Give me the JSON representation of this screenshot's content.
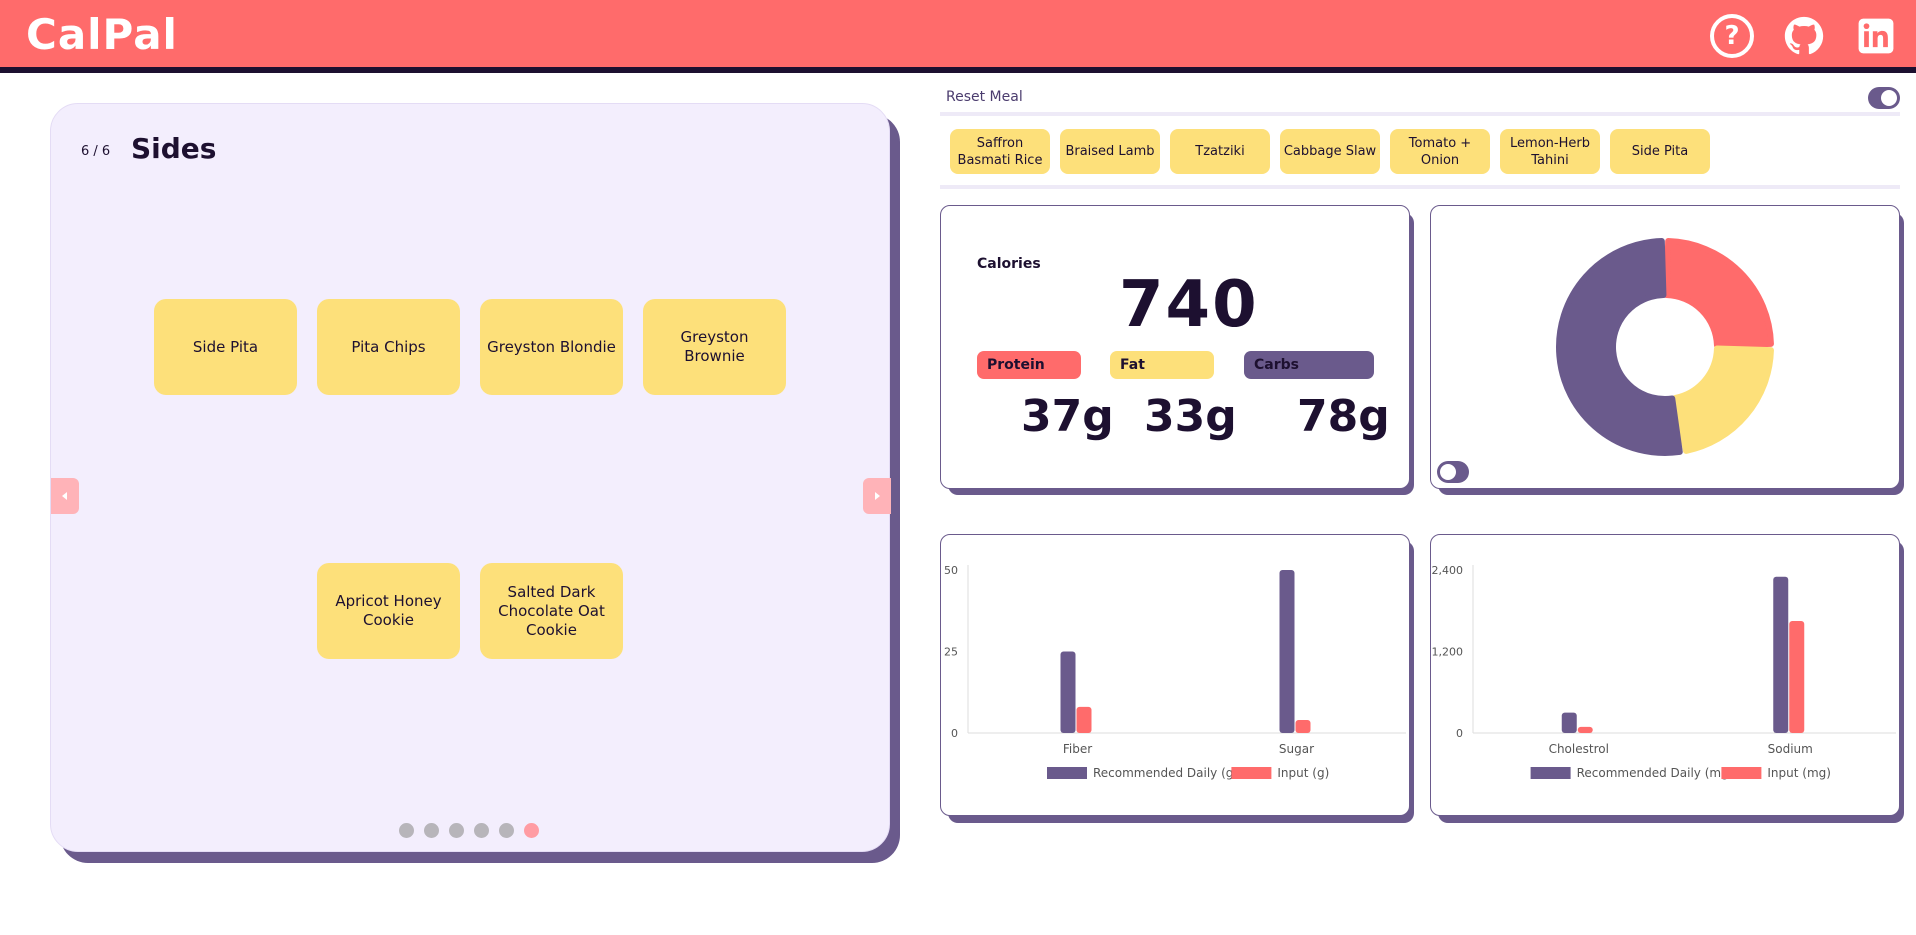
{
  "header": {
    "logo": "CalPal",
    "help_glyph": "?"
  },
  "carousel": {
    "step": "6 / 6",
    "title": "Sides",
    "items": [
      "Side Pita",
      "Pita Chips",
      "Greyston Blondie",
      "Greyston Brownie",
      "Apricot Honey Cookie",
      "Salted Dark Chocolate Oat Cookie"
    ],
    "dots_total": 6,
    "dots_active": 6
  },
  "meal": {
    "reset_label": "Reset Meal",
    "chips": [
      "Saffron Basmati Rice",
      "Braised Lamb",
      "Tzatziki",
      "Cabbage Slaw",
      "Tomato + Onion",
      "Lemon-Herb Tahini",
      "Side Pita"
    ]
  },
  "summary": {
    "calories_label": "Calories",
    "calories_value": "740",
    "macros": [
      {
        "label": "Protein",
        "value": "37g",
        "color": "#ff6b6b"
      },
      {
        "label": "Fat",
        "value": "33g",
        "color": "#fde07a"
      },
      {
        "label": "Carbs",
        "value": "78g",
        "color": "#6a5a8c"
      }
    ]
  },
  "colors": {
    "accent": "#ff6b6b",
    "yellow": "#fde07a",
    "purple": "#6a5a8c",
    "dark": "#1d1030"
  },
  "chart_data": [
    {
      "type": "pie",
      "categories": [
        "Protein",
        "Fat",
        "Carbs"
      ],
      "values": [
        37,
        33,
        78
      ]
    },
    {
      "type": "bar",
      "categories": [
        "Fiber",
        "Sugar"
      ],
      "series": [
        {
          "name": "Recommended Daily (g)",
          "values": [
            25,
            50
          ]
        },
        {
          "name": "Input (g)",
          "values": [
            8,
            4
          ]
        }
      ],
      "ylim": [
        0,
        50
      ],
      "yticks": [
        "0",
        "25",
        "50"
      ],
      "legend": "bottom"
    },
    {
      "type": "bar",
      "categories": [
        "Cholestrol",
        "Sodium"
      ],
      "series": [
        {
          "name": "Recommended Daily (mg)",
          "values": [
            300,
            2300
          ]
        },
        {
          "name": "Input (mg)",
          "values": [
            90,
            1650
          ]
        }
      ],
      "ylim": [
        0,
        2400
      ],
      "yticks": [
        "0",
        "1,200",
        "2,400"
      ],
      "legend": "bottom"
    }
  ]
}
